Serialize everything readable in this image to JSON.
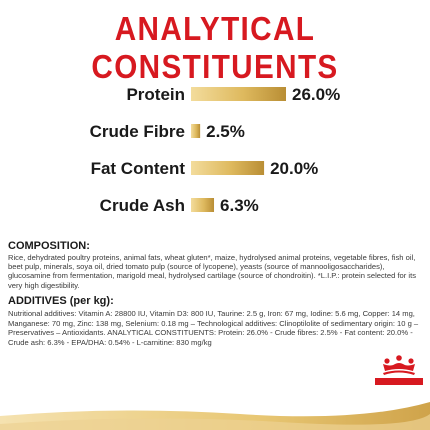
{
  "header": {
    "title": "ANALYTICAL CONSTITUENTS"
  },
  "chart_data": {
    "type": "bar",
    "orientation": "horizontal",
    "categories": [
      "Protein",
      "Crude Fibre",
      "Fat Content",
      "Crude Ash"
    ],
    "values": [
      26.0,
      2.5,
      20.0,
      6.3
    ],
    "value_labels": [
      "26.0%",
      "2.5%",
      "20.0%",
      "6.3%"
    ],
    "unit": "%",
    "xlim": [
      0,
      26
    ],
    "grid": false,
    "colors": {
      "bar_light": "#f0d592",
      "bar_dark": "#b98e35"
    }
  },
  "composition": {
    "heading": "COMPOSITION:",
    "text": "Rice, dehydrated poultry proteins, animal fats, wheat gluten*, maize, hydrolysed animal proteins, vegetable fibres, fish oil, beet pulp, minerals, soya oil, dried tomato pulp (source of lycopene), yeasts (source of mannooligosaccharides), glucosamine from fermentation, marigold meal, hydrolysed cartilage (source of chondroitin). *L.I.P.: protein selected for its very high digestibility."
  },
  "additives": {
    "heading": "ADDITIVES (per kg):",
    "text": "Nutritional additives: Vitamin A: 28800 IU, Vitamin D3: 800 IU, Taurine: 2.5 g, Iron: 67 mg, Iodine: 5.6 mg, Copper: 14 mg, Manganese: 70 mg, Zinc: 138 mg, Selenium: 0.18 mg – Technological additives: Clinoptilolite of sedimentary origin: 10 g – Preservatives – Antioxidants. ANALYTICAL CONSTITUENTS: Protein: 26.0% - Crude fibres: 2.5% - Fat content: 20.0% - Crude ash: 6.3% - EPA/DHA: 0.54% - L-carnitine: 830 mg/kg"
  },
  "brand": {
    "logo_text": "ROYAL CANIN",
    "accent": "#d71920"
  }
}
